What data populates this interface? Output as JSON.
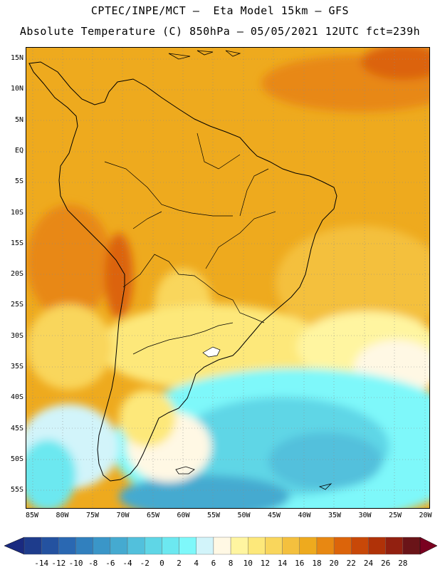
{
  "header": {
    "title_line1": "CPTEC/INPE/MCT –  Eta Model 15km – GFS",
    "title_line2": "Absolute Temperature (C) 850hPa – 05/05/2021 12UTC fct=239h"
  },
  "map": {
    "lat_labels": [
      "15N",
      "10N",
      "5N",
      "EQ",
      "5S",
      "10S",
      "15S",
      "20S",
      "25S",
      "30S",
      "35S",
      "40S",
      "45S",
      "50S",
      "55S"
    ],
    "lon_labels": [
      "85W",
      "80W",
      "75W",
      "70W",
      "65W",
      "60W",
      "55W",
      "50W",
      "45W",
      "40W",
      "35W",
      "30W",
      "25W",
      "20W"
    ]
  },
  "colorbar": {
    "labels": [
      "-14",
      "-12",
      "-10",
      "-8",
      "-6",
      "-4",
      "-2",
      "0",
      "2",
      "4",
      "6",
      "8",
      "10",
      "12",
      "14",
      "16",
      "18",
      "20",
      "22",
      "24",
      "26",
      "28"
    ],
    "colors": [
      "#1e3c8c",
      "#2452a0",
      "#2a68b2",
      "#3180be",
      "#3a96c8",
      "#45aad0",
      "#52c0dc",
      "#5fd6e6",
      "#6ce8f0",
      "#7ef8fa",
      "#d2f4fa",
      "#fff8e4",
      "#fff5a0",
      "#fde87a",
      "#f9d65c",
      "#f4c03e",
      "#eeaa1e",
      "#e88812",
      "#dc640a",
      "#c84808",
      "#b03208",
      "#922010",
      "#6a1418"
    ],
    "under_color": "#1a2a80",
    "over_color": "#7a0020"
  }
}
